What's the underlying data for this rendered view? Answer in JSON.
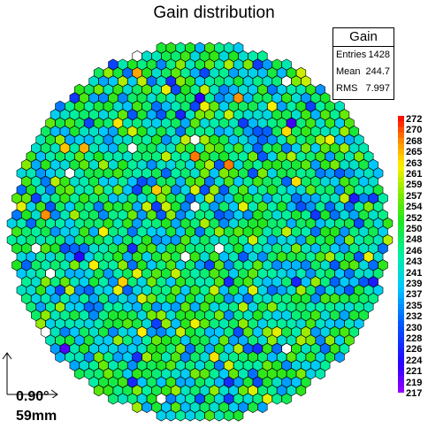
{
  "chart_data": {
    "type": "heatmap",
    "title": "Gain distribution",
    "stats": {
      "name": "Gain",
      "rows": [
        {
          "label": "Entries",
          "value": "1428"
        },
        {
          "label": "Mean",
          "value": "244.7"
        },
        {
          "label": "RMS",
          "value": "7.997"
        }
      ]
    },
    "z_range": [
      217,
      272
    ],
    "z_ticks": [
      "272",
      "270",
      "268",
      "265",
      "263",
      "261",
      "259",
      "257",
      "254",
      "252",
      "250",
      "248",
      "246",
      "243",
      "241",
      "239",
      "237",
      "235",
      "232",
      "230",
      "228",
      "226",
      "224",
      "221",
      "219",
      "217"
    ],
    "mean": 244.7,
    "rms": 7.997,
    "entries": 1428,
    "annotations": {
      "angle": "0.90°",
      "size": "59mm"
    }
  }
}
